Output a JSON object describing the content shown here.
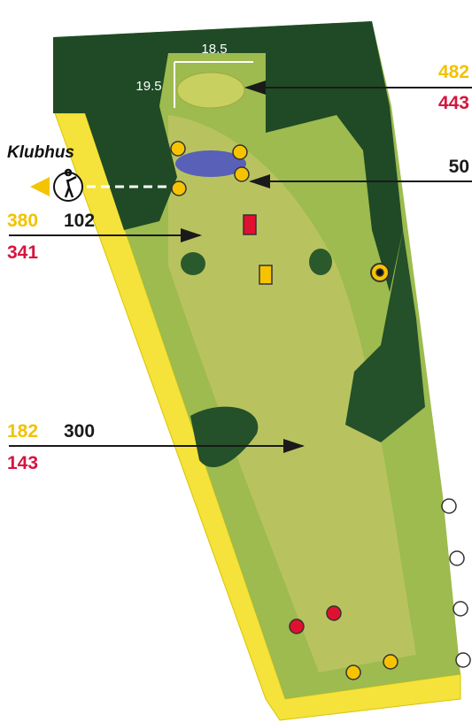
{
  "green": {
    "width": "18.5",
    "depth": "19.5"
  },
  "clubhouse": "Klubhus",
  "markers": [
    {
      "yellow": "482",
      "red": "443"
    },
    {
      "black": "50"
    },
    {
      "yellow": "380",
      "black": "102",
      "red": "341"
    },
    {
      "yellow": "182",
      "black": "300",
      "red": "143"
    }
  ]
}
